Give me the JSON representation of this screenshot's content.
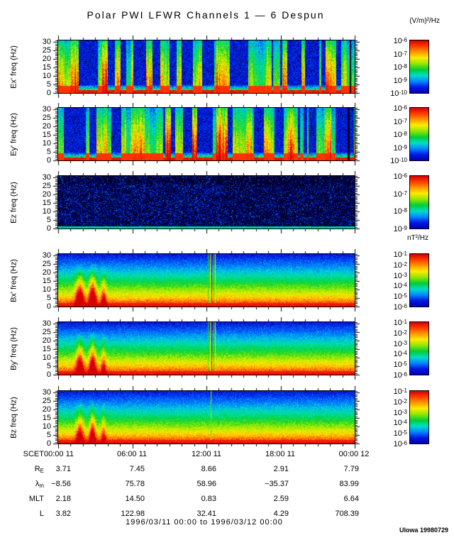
{
  "title": "Polar PWI LFWR Channels 1 — 6 Despun",
  "units_e": "(V/m)²/Hz",
  "units_b": "nT²/Hz",
  "date_range": "1996/03/11 00:00 to 1996/03/12 00:00",
  "credit": "UIowa 19980729",
  "chart_data": {
    "type": "heatmap",
    "subtype": "time-frequency spectrogram, 6 stacked panels with individual colorbars",
    "title": "Polar PWI LFWR Channels 1 — 6 Despun",
    "time_range": "1996/03/11 00:00 to 1996/03/12 00:00",
    "x_axis": {
      "label": "SCET",
      "hours": 24,
      "major_tick_hours": 6,
      "minor_tick_hours": 1,
      "tick_labels": [
        "00:00 11",
        "06:00 11",
        "12:00 11",
        "18:00 11",
        "00:00 12"
      ]
    },
    "y_axis": {
      "unit": "Hz",
      "min": 0,
      "max": 31,
      "major_tick": 5,
      "minor_tick": 1,
      "tick_labels": [
        30,
        25,
        20,
        15,
        10,
        5,
        0
      ]
    },
    "legend_position": "right colorbars, log scale",
    "colorbar_colors_top_to_bottom": [
      "#d20000",
      "#ff3c00",
      "#ff9600",
      "#ffeb00",
      "#96e600",
      "#00cd37",
      "#00ddc8",
      "#0087ff",
      "#0017e1",
      "#0000b4"
    ],
    "panels": [
      {
        "channel": "Ex'",
        "ylabel": "Ex' freq (Hz)",
        "units": "(V/m)²/Hz",
        "colorbar_exponents": [
          -6,
          -7,
          -8,
          -9,
          -10
        ],
        "pattern": "intermittent broadband bursts (red/yellow columns) over blue background, solid red band below ~2 Hz, dark gap near right edge",
        "render": {
          "type": "bursty",
          "seed": 11,
          "blackStripe": 0.981
        }
      },
      {
        "channel": "Ey'",
        "ylabel": "Ey' freq (Hz)",
        "units": "(V/m)²/Hz",
        "colorbar_exponents": [
          -6,
          -7,
          -8,
          -9,
          -10
        ],
        "pattern": "intermittent broadband bursts similar to Ex', solid red band below ~2 Hz, dark gap near right edge",
        "render": {
          "type": "bursty",
          "seed": 29,
          "blackStripe": 0.975
        }
      },
      {
        "channel": "Ez",
        "ylabel": "Ez freq (Hz)",
        "units": "(V/m)²/Hz",
        "colorbar_exponents": [
          -6,
          -7,
          -8,
          -9
        ],
        "pattern": "near-noise-floor: black with sparse dark-blue speckle, thin cyan line at 0 Hz",
        "render": {
          "type": "sparse",
          "seed": 43
        }
      },
      {
        "channel": "Bx'",
        "ylabel": "Bx' freq (Hz)",
        "units": "nT²/Hz",
        "colorbar_exponents": [
          -1,
          -2,
          -3,
          -4,
          -5,
          -6
        ],
        "pattern": "smooth falling spectrum: red <3 Hz, yellow ~5 Hz, green ~10 Hz, cyan ~15 Hz, blue above; green plumes near 01:30-03:30; interference lines just after 12:00",
        "render": {
          "type": "gradient",
          "seed": 57,
          "plumes": [
            [
              0.072,
              0.014,
              0.5
            ],
            [
              0.115,
              0.012,
              0.55
            ],
            [
              0.152,
              0.009,
              0.3
            ]
          ],
          "lines": [
            [
              0.505,
              0.55
            ],
            [
              0.511,
              0.7
            ],
            [
              0.516,
              0.95
            ],
            [
              0.523,
              0.55
            ],
            [
              0.528,
              0.68
            ]
          ]
        }
      },
      {
        "channel": "By'",
        "ylabel": "By' freq (Hz)",
        "units": "nT²/Hz",
        "colorbar_exponents": [
          -1,
          -2,
          -3,
          -4,
          -5,
          -6
        ],
        "pattern": "smooth falling spectrum like Bx'; green plumes near 01:30-03:30; interference line cluster just after 12:00",
        "render": {
          "type": "gradient",
          "seed": 71,
          "plumes": [
            [
              0.072,
              0.013,
              0.45
            ],
            [
              0.115,
              0.011,
              0.5
            ],
            [
              0.152,
              0.008,
              0.28
            ]
          ],
          "lines": [
            [
              0.505,
              0.55
            ],
            [
              0.511,
              0.7
            ],
            [
              0.516,
              0.95
            ],
            [
              0.523,
              0.55
            ],
            [
              0.528,
              0.68
            ]
          ]
        }
      },
      {
        "channel": "Bz",
        "ylabel": "Bz freq (Hz)",
        "units": "nT²/Hz",
        "colorbar_exponents": [
          -1,
          -2,
          -3,
          -4,
          -5,
          -6
        ],
        "pattern": "smooth falling spectrum like Bx'; weak plumes on left; single faint interference line after 12:00",
        "render": {
          "type": "gradient",
          "seed": 89,
          "plumes": [
            [
              0.072,
              0.012,
              0.38
            ],
            [
              0.115,
              0.01,
              0.42
            ],
            [
              0.152,
              0.008,
              0.22
            ]
          ],
          "lines": [
            [
              0.515,
              0.6
            ]
          ]
        }
      }
    ],
    "ephemeris": {
      "rows": [
        {
          "label": "SCET",
          "sub": "",
          "values": [
            "00:00 11",
            "06:00 11",
            "12:00 11",
            "18:00 11",
            "00:00 12"
          ]
        },
        {
          "label": "R",
          "sub": "E",
          "values": [
            "3.71",
            "7.45",
            "8.66",
            "2.91",
            "7.79"
          ]
        },
        {
          "label": "λ",
          "sub": "m",
          "values": [
            "−8.56",
            "75.78",
            "58.96",
            "−35.37",
            "83.99"
          ]
        },
        {
          "label": "MLT",
          "sub": "",
          "values": [
            "2.18",
            "14.50",
            "0.83",
            "2.59",
            "6.64"
          ]
        },
        {
          "label": "L",
          "sub": "",
          "values": [
            "3.82",
            "122.98",
            "32.41",
            "4.29",
            "708.39"
          ]
        }
      ]
    }
  }
}
